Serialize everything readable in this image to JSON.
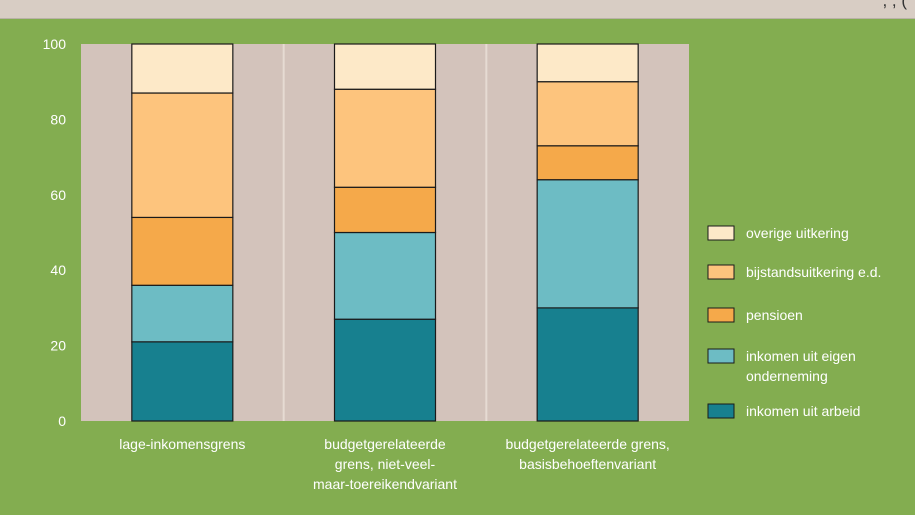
{
  "header": {
    "caption_fragment": ", , ("
  },
  "chart_data": {
    "type": "bar",
    "stacked": true,
    "ylim": [
      0,
      100
    ],
    "yticks": [
      0,
      20,
      40,
      60,
      80,
      100
    ],
    "grid": false,
    "legend_position": "right",
    "categories": [
      [
        "lage-inkomensgrens"
      ],
      [
        "budgetgerelateerde",
        "grens, niet-veel-",
        "maar-toereikendvariant"
      ],
      [
        "budgetgerelateerde grens,",
        "basisbehoeftenvariant"
      ]
    ],
    "series": [
      {
        "name": "inkomen uit arbeid",
        "color": "#17808f",
        "values": [
          21,
          27,
          30
        ]
      },
      {
        "name": "inkomen uit eigen onderneming",
        "label_lines": [
          "inkomen uit eigen",
          "onderneming"
        ],
        "color": "#6dbcc4",
        "values": [
          15,
          23,
          34
        ]
      },
      {
        "name": "pensioen",
        "color": "#f5a94a",
        "values": [
          18,
          12,
          9
        ]
      },
      {
        "name": "bijstandsuitkering e.d.",
        "color": "#fdc47d",
        "values": [
          33,
          26,
          17
        ]
      },
      {
        "name": "overige uitkering",
        "color": "#fde9c8",
        "values": [
          13,
          12,
          10
        ]
      }
    ],
    "legend_order": [
      "overige uitkering",
      "bijstandsuitkering e.d.",
      "pensioen",
      "inkomen uit eigen onderneming",
      "inkomen uit arbeid"
    ],
    "colors": {
      "plot_bg": "#d3c3bb",
      "page_bg": "#83ad50",
      "divider": "#e6dbd3",
      "axis_text": "#ffffff"
    }
  }
}
